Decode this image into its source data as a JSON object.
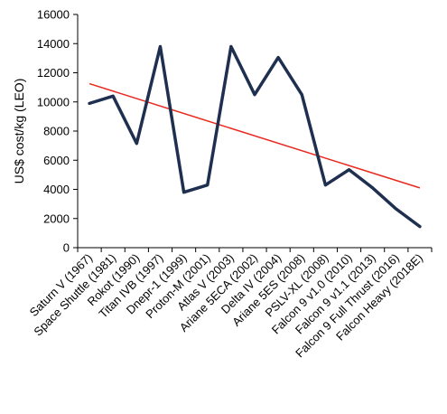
{
  "chart_data": {
    "type": "line",
    "title": "",
    "xlabel": "",
    "ylabel": "US$ cost/kg (LEO)",
    "ylim": [
      0,
      16000
    ],
    "yticks": [
      0,
      2000,
      4000,
      6000,
      8000,
      10000,
      12000,
      14000,
      16000
    ],
    "ytick_labels": [
      "0",
      "2000",
      "4000",
      "6000",
      "8000",
      "10000",
      "12000",
      "14000",
      "16000"
    ],
    "grid": false,
    "legend": "none",
    "categories": [
      "Saturn V (1967)",
      "Space Shuttle (1981)",
      "Rokot (1990)",
      "Titan IVB (1997)",
      "Dnepr-1 (1999)",
      "Proton-M (2001)",
      "Atlas V (2003)",
      "Ariane 5ECA (2002)",
      "Delta IV (2004)",
      "Ariane 5ES (2008)",
      "PSLV-XL (2008)",
      "Falcon 9 v1.0 (2010)",
      "Falcon 9 v1.1 (2013)",
      "Falcon 9 Full Thrust (2016)",
      "Falcon Heavy (2018E)"
    ],
    "series": [
      {
        "values": [
          9900,
          10400,
          7150,
          13800,
          3800,
          4300,
          13800,
          10500,
          13050,
          10500,
          4300,
          5350,
          4100,
          2650,
          1450
        ],
        "color": "#1f2f4f"
      }
    ],
    "trendline": {
      "start": 11250,
      "end": 4100,
      "color": "#e8281e"
    }
  }
}
